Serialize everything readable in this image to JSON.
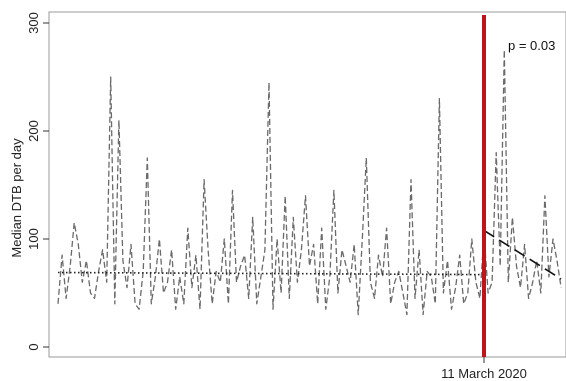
{
  "chart_data": {
    "type": "line",
    "title": "",
    "xlabel": "",
    "ylabel": "Median DTB per day",
    "ylim": [
      0,
      300
    ],
    "yticks": [
      0,
      100,
      200,
      300
    ],
    "xlim": [
      0,
      500
    ],
    "xtick_labels": [
      {
        "label": "11 March 2020",
        "x": 420
      }
    ],
    "grid": false,
    "legend": "none",
    "series": [
      {
        "style": "dashed",
        "color": "#6a6a6a",
        "x": [
          0,
          4,
          8,
          12,
          16,
          20,
          24,
          28,
          32,
          36,
          40,
          44,
          48,
          52,
          56,
          60,
          64,
          68,
          72,
          76,
          80,
          84,
          88,
          92,
          96,
          100,
          104,
          108,
          112,
          116,
          120,
          124,
          128,
          132,
          136,
          140,
          144,
          148,
          152,
          156,
          160,
          164,
          168,
          172,
          176,
          180,
          184,
          188,
          192,
          196,
          200,
          204,
          208,
          212,
          216,
          220,
          224,
          228,
          232,
          236,
          240,
          244,
          248,
          252,
          256,
          260,
          264,
          268,
          272,
          276,
          280,
          284,
          288,
          292,
          296,
          300,
          304,
          308,
          312,
          316,
          320,
          324,
          328,
          332,
          336,
          340,
          344,
          348,
          352,
          356,
          360,
          364,
          368,
          372,
          376,
          380,
          384,
          388,
          392,
          396,
          400,
          404,
          408,
          412,
          416,
          420,
          424,
          428,
          432,
          436,
          440,
          444,
          448,
          452,
          456,
          460,
          464,
          468,
          472,
          476,
          480,
          484,
          488,
          492,
          496
        ],
        "y": [
          40,
          85,
          45,
          75,
          115,
          95,
          60,
          80,
          50,
          45,
          70,
          90,
          60,
          250,
          40,
          210,
          80,
          55,
          95,
          40,
          35,
          70,
          175,
          40,
          65,
          100,
          50,
          60,
          90,
          35,
          65,
          40,
          110,
          55,
          85,
          35,
          155,
          90,
          40,
          70,
          60,
          100,
          40,
          145,
          60,
          75,
          85,
          45,
          120,
          40,
          65,
          90,
          245,
          35,
          100,
          50,
          140,
          45,
          120,
          60,
          90,
          140,
          75,
          95,
          40,
          110,
          35,
          65,
          145,
          50,
          90,
          75,
          60,
          95,
          30,
          100,
          175,
          60,
          45,
          85,
          65,
          110,
          40,
          60,
          70,
          50,
          30,
          155,
          45,
          90,
          30,
          70,
          65,
          40,
          230,
          50,
          80,
          35,
          55,
          85,
          40,
          50,
          100,
          60,
          45,
          105,
          50,
          60,
          180,
          75,
          275,
          60,
          120,
          75,
          55,
          95,
          45,
          60,
          80,
          50,
          140,
          65,
          100,
          80,
          55
        ]
      },
      {
        "style": "dotted",
        "color": "#222222",
        "x": [
          0,
          420
        ],
        "y": [
          69,
          67
        ]
      },
      {
        "style": "long-dashed",
        "color": "#111111",
        "x": [
          420,
          496
        ],
        "y": [
          108,
          63
        ]
      }
    ],
    "reference_line": {
      "x": 420,
      "color": "#c0141c"
    },
    "annotations": [
      {
        "text": "p = 0.03"
      }
    ]
  }
}
